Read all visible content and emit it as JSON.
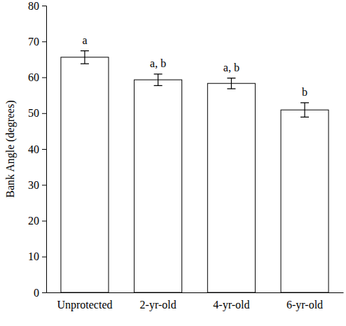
{
  "chart_data": {
    "type": "bar",
    "y_label": "Bank Angle (degrees)",
    "categories": [
      "Unprotected",
      "2-yr-old",
      "4-yr-old",
      "6-yr-old"
    ],
    "values": [
      65.6,
      59.3,
      58.3,
      50.9
    ],
    "errors": [
      1.8,
      1.6,
      1.5,
      2.0
    ],
    "annotations": [
      "a",
      "a, b",
      "a, b",
      "b"
    ],
    "color": "#ffffff",
    "ylim": [
      0,
      80
    ],
    "yticks": [
      0,
      10,
      20,
      30,
      40,
      50,
      60,
      70,
      80
    ],
    "grid": false
  }
}
